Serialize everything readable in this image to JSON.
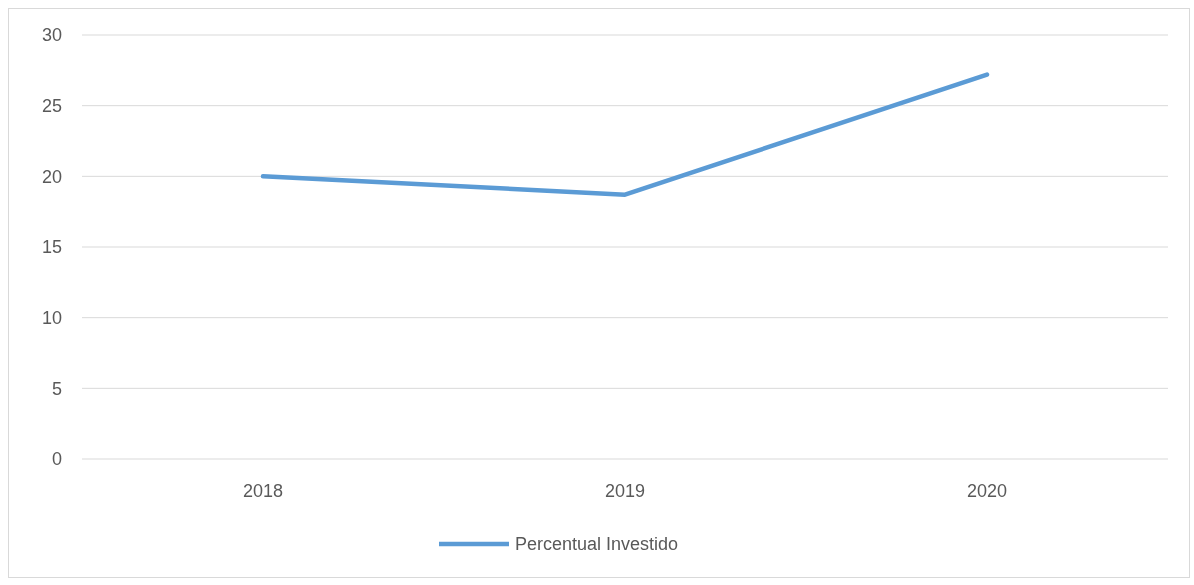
{
  "chart_data": {
    "type": "line",
    "categories": [
      "2018",
      "2019",
      "2020"
    ],
    "series": [
      {
        "name": "Percentual Investido",
        "color": "#5b9bd5",
        "values": [
          20.0,
          18.7,
          27.2
        ]
      }
    ],
    "ylim": [
      0,
      30
    ],
    "yticks": [
      0,
      5,
      10,
      15,
      20,
      25,
      30
    ],
    "grid": "y",
    "legend": "bottom",
    "marker": "none",
    "line_style": "solid"
  }
}
